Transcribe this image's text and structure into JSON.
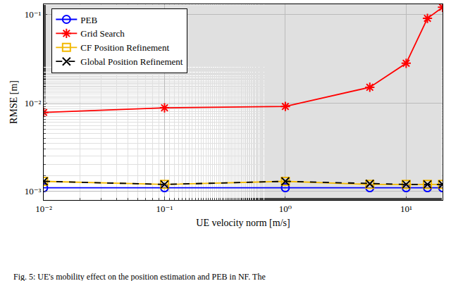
{
  "chart_data": {
    "type": "line",
    "x_label": "UE velocity norm [m/s]",
    "y_label": "RMSE [m]",
    "caption": "Fig. 5: UE's mobility effect on the position estimation and PEB in NF. The",
    "log": true,
    "grid": true,
    "legend": "top-left",
    "x": [
      0.01,
      0.1,
      1,
      5,
      10,
      15,
      20
    ],
    "xlim": [
      0.01,
      20
    ],
    "xticks": [
      {
        "value": 0.01,
        "label": "10⁻²"
      },
      {
        "value": 0.1,
        "label": "10⁻¹"
      },
      {
        "value": 1,
        "label": "10⁰"
      },
      {
        "value": 10,
        "label": "10¹"
      }
    ],
    "ylim": [
      0.0008,
      0.13
    ],
    "yticks": [
      {
        "value": 0.001,
        "label": "10⁻³"
      },
      {
        "value": 0.01,
        "label": "10⁻²"
      },
      {
        "value": 0.1,
        "label": "10⁻¹"
      }
    ],
    "series": [
      {
        "name": "PEB",
        "color": "#0000ff",
        "marker": "circle-open",
        "line_style": "solid",
        "values": [
          0.0011,
          0.0011,
          0.0011,
          0.0011,
          0.0011,
          0.0011,
          0.0011
        ]
      },
      {
        "name": "Grid Search",
        "color": "#ff0000",
        "marker": "asterisk-open",
        "line_style": "solid",
        "values": [
          0.0078,
          0.0088,
          0.0091,
          0.015,
          0.028,
          0.09,
          0.12
        ]
      },
      {
        "name": "CF Position Refinement",
        "color": "#f2b800",
        "marker": "square-open",
        "line_style": "solid",
        "values": [
          0.0013,
          0.0012,
          0.0013,
          0.0012,
          0.0012,
          0.0012,
          0.0012
        ]
      },
      {
        "name": "Global Position Refinement",
        "color": "#000000",
        "marker": "x-thin-open",
        "line_style": "dash",
        "values": [
          0.0013,
          0.0012,
          0.0013,
          0.00122,
          0.0012,
          0.0012,
          0.0012
        ]
      }
    ]
  }
}
